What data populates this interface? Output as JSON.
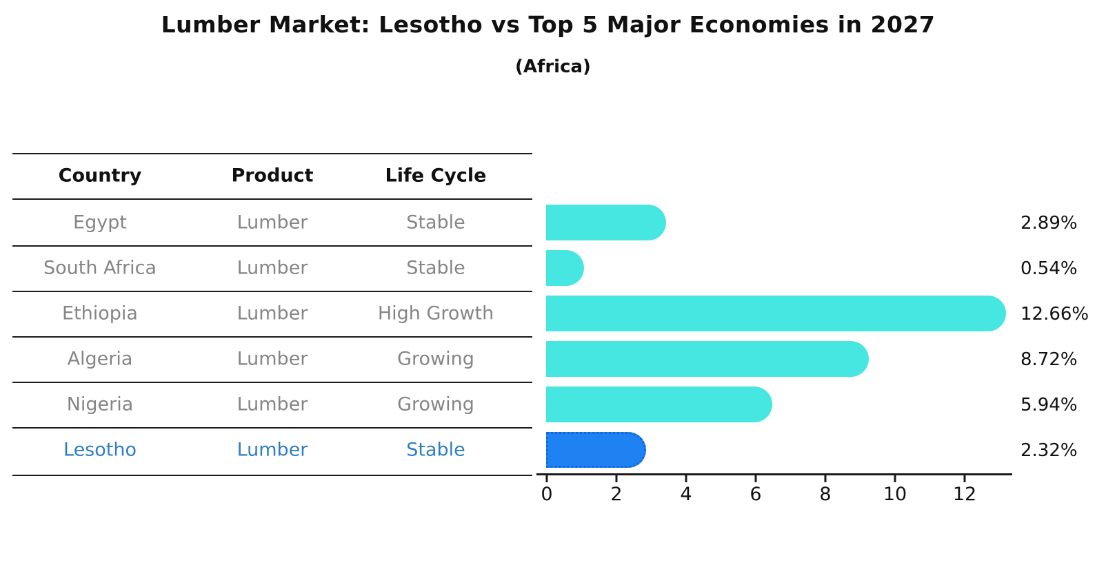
{
  "title": "Lumber Market: Lesotho vs Top 5 Major Economies in 2027",
  "subtitle": "(Africa)",
  "table": {
    "headers": [
      "Country",
      "Product",
      "Life Cycle"
    ],
    "rows": [
      {
        "country": "Egypt",
        "product": "Lumber",
        "life_cycle": "Stable"
      },
      {
        "country": "South Africa",
        "product": "Lumber",
        "life_cycle": "Stable"
      },
      {
        "country": "Ethiopia",
        "product": "Lumber",
        "life_cycle": "High Growth"
      },
      {
        "country": "Algeria",
        "product": "Lumber",
        "life_cycle": "Growing"
      },
      {
        "country": "Nigeria",
        "product": "Lumber",
        "life_cycle": "Growing"
      },
      {
        "country": "Lesotho",
        "product": "Lumber",
        "life_cycle": "Stable"
      }
    ]
  },
  "chart_data": {
    "type": "bar",
    "orientation": "horizontal",
    "title": "Lumber Market: Lesotho vs Top 5 Major Economies in 2027",
    "subtitle": "(Africa)",
    "categories": [
      "Egypt",
      "South Africa",
      "Ethiopia",
      "Algeria",
      "Nigeria",
      "Lesotho"
    ],
    "values": [
      2.89,
      0.54,
      12.66,
      8.72,
      5.94,
      2.32
    ],
    "value_labels": [
      "2.89%",
      "0.54%",
      "12.66%",
      "8.72%",
      "5.94%",
      "2.32%"
    ],
    "x_ticks": [
      "0",
      "2",
      "4",
      "6",
      "8",
      "10",
      "12"
    ],
    "xlim": [
      0,
      13.4
    ],
    "grid": false,
    "legend": false,
    "bar_color": "#46e6e1",
    "highlight_index": 5,
    "highlight_bar_color": "#1e82f2",
    "highlight_border_color": "#1863d8",
    "highlight_text_color": "#2e7ec4",
    "row_text_color": "#858585",
    "axis_color": "#1a1a1a"
  }
}
